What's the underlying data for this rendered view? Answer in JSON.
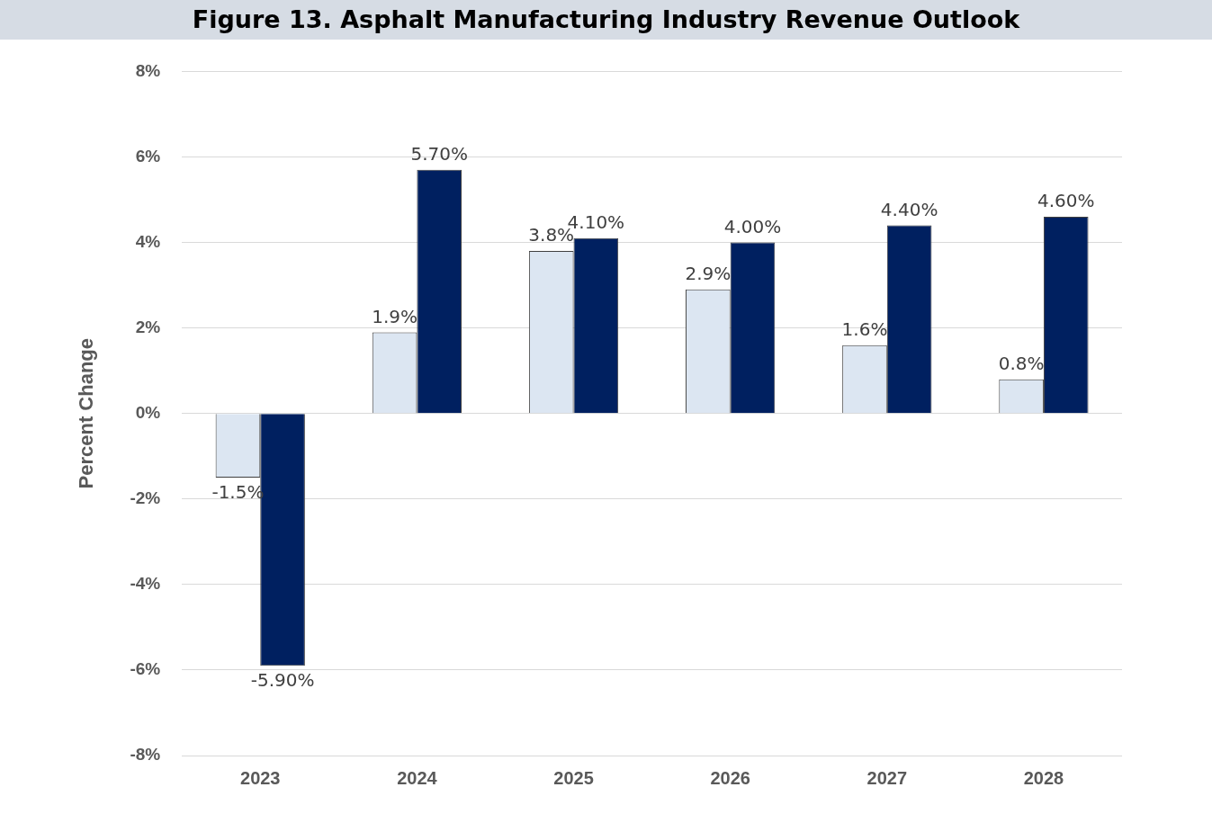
{
  "chart_data": {
    "type": "bar",
    "title": "Figure 13. Asphalt Manufacturing Industry Revenue Outlook",
    "ylabel": "Percent Change",
    "categories": [
      "2023",
      "2024",
      "2025",
      "2026",
      "2027",
      "2028"
    ],
    "series": [
      {
        "color": "#dce6f2",
        "values": [
          -1.5,
          1.9,
          3.8,
          2.9,
          1.6,
          0.8
        ],
        "value_labels": [
          "-1.5%",
          "1.9%",
          "3.8%",
          "2.9%",
          "1.6%",
          "0.8%"
        ]
      },
      {
        "color": "#002060",
        "values": [
          -5.9,
          5.7,
          4.1,
          4.0,
          4.4,
          4.6
        ],
        "value_labels": [
          "-5.90%",
          "5.70%",
          "4.10%",
          "4.00%",
          "4.40%",
          "4.60%"
        ]
      }
    ],
    "ylim": [
      -8,
      8
    ],
    "yticks": [
      {
        "value": -8,
        "label": "-8%"
      },
      {
        "value": -6,
        "label": "-6%"
      },
      {
        "value": -4,
        "label": "-4%"
      },
      {
        "value": -2,
        "label": "-2%"
      },
      {
        "value": 0,
        "label": "0%"
      },
      {
        "value": 2,
        "label": "2%"
      },
      {
        "value": 4,
        "label": "4%"
      },
      {
        "value": 6,
        "label": "6%"
      },
      {
        "value": 8,
        "label": "8%"
      }
    ],
    "grid": "y",
    "legend": false
  }
}
